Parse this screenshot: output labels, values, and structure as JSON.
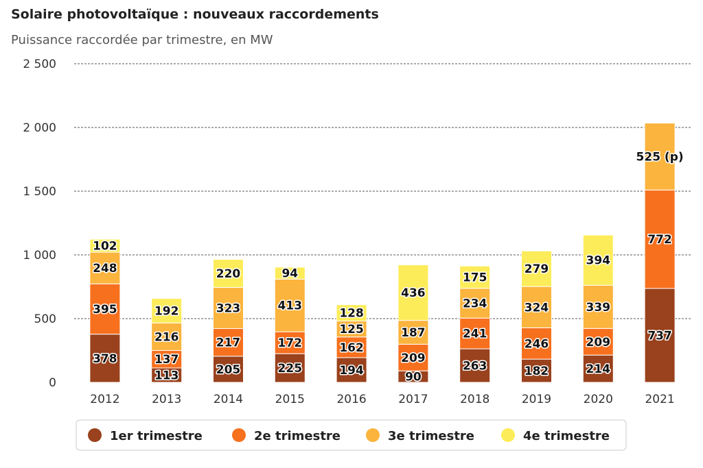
{
  "chart_data": {
    "type": "bar",
    "stacked": true,
    "title": "Solaire photovoltaïque : nouveaux raccordements",
    "subtitle": "Puissance raccordée par trimestre, en MW",
    "categories": [
      "2012",
      "2013",
      "2014",
      "2015",
      "2016",
      "2017",
      "2018",
      "2019",
      "2020",
      "2021"
    ],
    "yticks": [
      "0",
      "500",
      "1 000",
      "1 500",
      "2 000",
      "2 500"
    ],
    "ylim": [
      0,
      2500
    ],
    "grid": true,
    "legend_position": "bottom",
    "series": [
      {
        "name": "1er trimestre",
        "color": "#99421d",
        "values": [
          378,
          113,
          205,
          225,
          194,
          90,
          263,
          182,
          214,
          737
        ],
        "labels": [
          "378",
          "113",
          "205",
          "225",
          "194",
          "90",
          "263",
          "182",
          "214",
          "737"
        ]
      },
      {
        "name": "2e trimestre",
        "color": "#f7701e",
        "values": [
          395,
          137,
          217,
          172,
          162,
          209,
          241,
          246,
          209,
          772
        ],
        "labels": [
          "395",
          "137",
          "217",
          "172",
          "162",
          "209",
          "241",
          "246",
          "209",
          "772"
        ]
      },
      {
        "name": "3e trimestre",
        "color": "#fbb43d",
        "values": [
          248,
          216,
          323,
          413,
          125,
          187,
          234,
          324,
          339,
          525
        ],
        "labels": [
          "248",
          "216",
          "323",
          "413",
          "125",
          "187",
          "234",
          "324",
          "339",
          "525 (p)"
        ]
      },
      {
        "name": "4e trimestre",
        "color": "#fdec5a",
        "values": [
          102,
          192,
          220,
          94,
          128,
          436,
          175,
          279,
          394,
          null
        ],
        "labels": [
          "102",
          "192",
          "220",
          "94",
          "128",
          "436",
          "175",
          "279",
          "394",
          null
        ]
      }
    ]
  }
}
